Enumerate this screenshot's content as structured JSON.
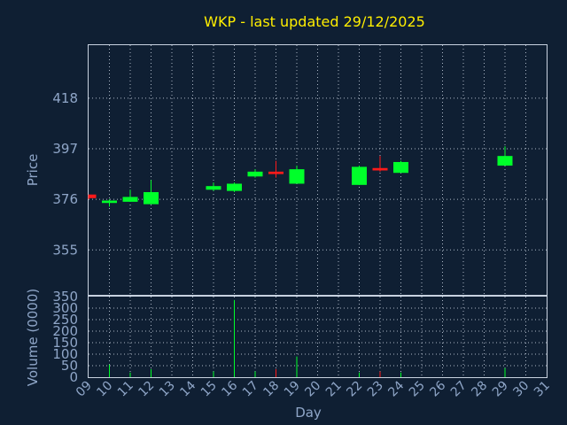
{
  "chart_data": {
    "type": "candlestick",
    "title": "WKP - last updated 29/12/2025",
    "xlabel": "Day",
    "price_panel": {
      "ylabel": "Price",
      "ylim": [
        336,
        440
      ],
      "yticks": [
        355,
        376,
        397,
        418
      ],
      "grid": true
    },
    "volume_panel": {
      "ylabel": "Volume (0000)",
      "ylim": [
        0,
        350
      ],
      "yticks": [
        0,
        50,
        100,
        150,
        200,
        250,
        300,
        350
      ],
      "grid": true
    },
    "x_ticks": [
      "09",
      "10",
      "11",
      "12",
      "13",
      "14",
      "15",
      "16",
      "17",
      "18",
      "19",
      "20",
      "21",
      "22",
      "23",
      "24",
      "25",
      "26",
      "27",
      "28",
      "29",
      "30",
      "31"
    ],
    "candles": [
      {
        "day": "09",
        "open": 378.0,
        "high": 378.0,
        "low": 376.0,
        "close": 376.5,
        "volume": 0,
        "direction": "down"
      },
      {
        "day": "10",
        "open": 374.5,
        "high": 376.0,
        "low": 373.0,
        "close": 375.5,
        "volume": 55,
        "direction": "up"
      },
      {
        "day": "11",
        "open": 375.0,
        "high": 380.0,
        "low": 375.0,
        "close": 377.0,
        "volume": 20,
        "direction": "up"
      },
      {
        "day": "12",
        "open": 374.0,
        "high": 384.0,
        "low": 374.0,
        "close": 379.0,
        "volume": 35,
        "direction": "up"
      },
      {
        "day": "15",
        "open": 380.0,
        "high": 383.0,
        "low": 379.5,
        "close": 381.5,
        "volume": 25,
        "direction": "up"
      },
      {
        "day": "16",
        "open": 379.5,
        "high": 383.0,
        "low": 379.0,
        "close": 382.5,
        "volume": 335,
        "direction": "up"
      },
      {
        "day": "17",
        "open": 385.5,
        "high": 388.5,
        "low": 385.0,
        "close": 387.5,
        "volume": 25,
        "direction": "up"
      },
      {
        "day": "18",
        "open": 387.5,
        "high": 392.0,
        "low": 385.0,
        "close": 386.5,
        "volume": 35,
        "direction": "down"
      },
      {
        "day": "19",
        "open": 382.5,
        "high": 390.0,
        "low": 382.5,
        "close": 388.5,
        "volume": 90,
        "direction": "up"
      },
      {
        "day": "22",
        "open": 382.0,
        "high": 390.0,
        "low": 382.0,
        "close": 389.5,
        "volume": 20,
        "direction": "up"
      },
      {
        "day": "23",
        "open": 389.0,
        "high": 394.0,
        "low": 387.5,
        "close": 388.0,
        "volume": 25,
        "direction": "down"
      },
      {
        "day": "24",
        "open": 387.0,
        "high": 392.0,
        "low": 387.0,
        "close": 391.5,
        "volume": 20,
        "direction": "up"
      },
      {
        "day": "29",
        "open": 390.0,
        "high": 398.0,
        "low": 390.0,
        "close": 394.0,
        "volume": 40,
        "direction": "up"
      }
    ],
    "colors": {
      "up": "#00ff2a",
      "down": "#ff1a1a",
      "background": "#0f1f33",
      "frame": "#c8d2e0",
      "title": "#ffee00",
      "text": "#8fa6c8"
    }
  }
}
